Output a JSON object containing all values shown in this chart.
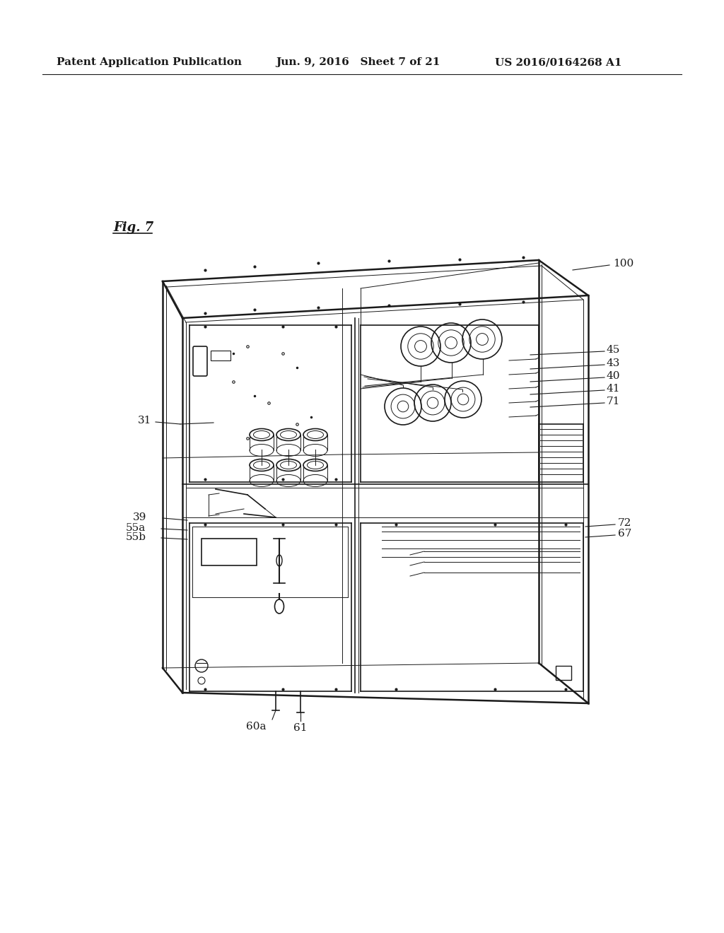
{
  "bg_color": "#ffffff",
  "header_left": "Patent Application Publication",
  "header_mid": "Jun. 9, 2016   Sheet 7 of 21",
  "header_right": "US 2016/0164268 A1",
  "fig_label": "Fig. 7",
  "label_100": "100",
  "label_45": "45",
  "label_43": "43",
  "label_40": "40",
  "label_41": "41",
  "label_71": "71",
  "label_31": "31",
  "label_39": "39",
  "label_55a": "55a",
  "label_55b": "55b",
  "label_72": "72",
  "label_67": "67",
  "label_60a": "60a",
  "label_61": "61"
}
